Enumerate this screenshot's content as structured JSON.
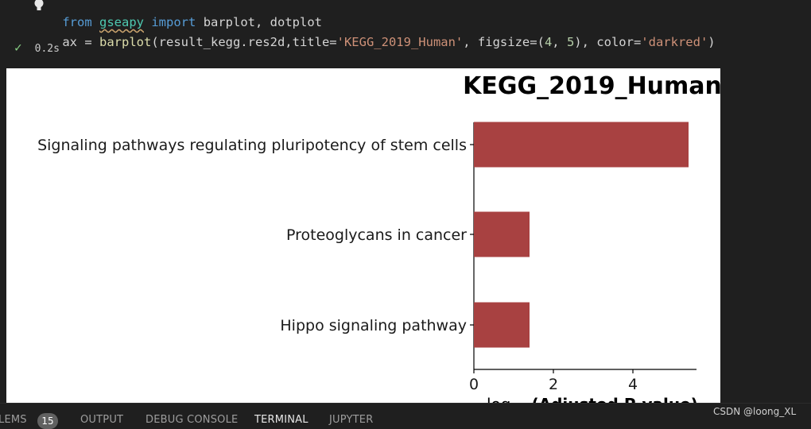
{
  "code": {
    "line1": {
      "from_kw": "from",
      "module": "gseapy",
      "import_kw": "import",
      "names": "barplot, dotplot"
    },
    "line2": {
      "var": "ax",
      "op": " = ",
      "func": "barplot",
      "args_open": "(result_kegg.res2d,title=",
      "title_str": "'KEGG_2019_Human'",
      "figsize_arg": ", figsize=",
      "figsize_open": "(",
      "fig_w": "4",
      "fig_sep": ", ",
      "fig_h": "5",
      "figsize_close": ")",
      "color_arg": ", color=",
      "color_str": "'darkred'",
      "args_close": ")"
    }
  },
  "cell_status": {
    "exec_time": "0.2s"
  },
  "colors": {
    "bar": "#a84141",
    "check": "#89d185"
  },
  "chart_data": {
    "type": "bar",
    "orientation": "horizontal",
    "title": "KEGG_2019_Human",
    "xlabel_prefix": "log",
    "xlabel_main": "(Adjusted P-value)",
    "categories": [
      "Signaling pathways regulating pluripotency of stem cells",
      "Proteoglycans in cancer",
      "Hippo signaling pathway"
    ],
    "values": [
      5.4,
      1.4,
      1.4
    ],
    "xlim": [
      0,
      5.6
    ],
    "xticks": [
      0,
      2,
      4
    ],
    "grid": false
  },
  "bottom_tabs": [
    {
      "label": "LEMS",
      "active": false
    },
    {
      "label": "OUTPUT",
      "active": false
    },
    {
      "label": "DEBUG CONSOLE",
      "active": false
    },
    {
      "label": "TERMINAL",
      "active": true
    },
    {
      "label": "JUPYTER",
      "active": false
    }
  ],
  "problems_count": "15",
  "watermark": "CSDN @loong_XL"
}
